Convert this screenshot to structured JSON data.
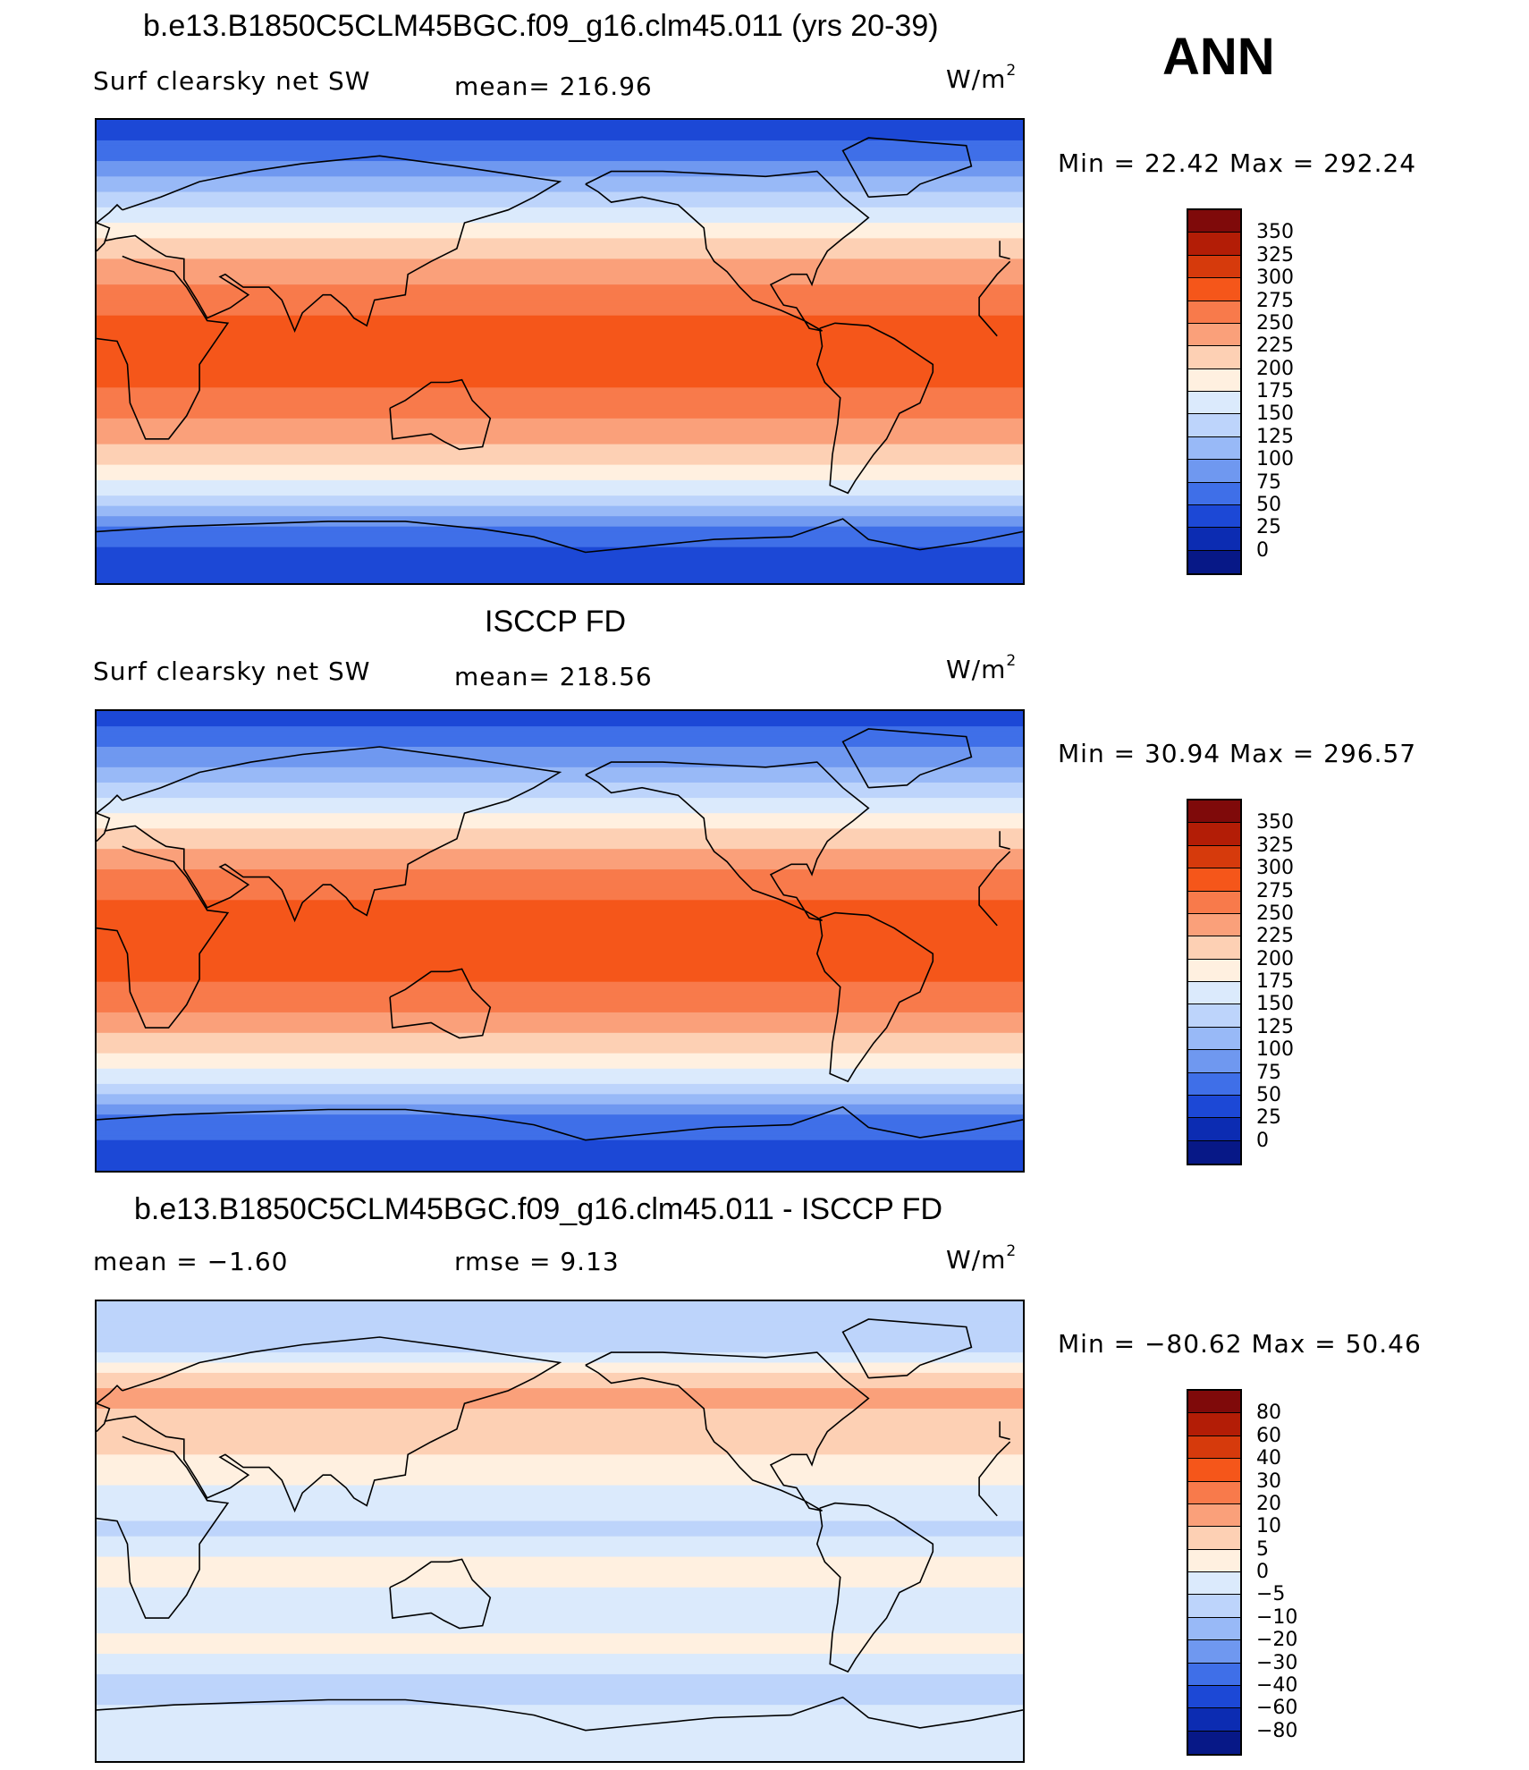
{
  "ann_label": "ANN",
  "panels": [
    {
      "title": "b.e13.B1850C5CLM45BGC.f09_g16.clm45.011 (yrs 20-39)",
      "left_label": "Surf clearsky net SW",
      "center_label": "mean= 216.96",
      "units": "W/m",
      "units_sup": "2",
      "minmax": "Min =   22.42 Max = 292.24"
    },
    {
      "title": "ISCCP FD",
      "left_label": "Surf clearsky net SW",
      "center_label": "mean= 218.56",
      "units": "W/m",
      "units_sup": "2",
      "minmax": "Min =   30.94 Max = 296.57"
    },
    {
      "title": "b.e13.B1850C5CLM45BGC.f09_g16.clm45.011 - ISCCP FD",
      "left_label": "mean =   −1.60",
      "center_label": "rmse =    9.13",
      "units": "W/m",
      "units_sup": "2",
      "minmax": "Min = −80.62 Max =   50.46"
    }
  ],
  "chart_data": [
    {
      "type": "heatmap",
      "title": "b.e13.B1850C5CLM45BGC.f09_g16.clm45.011 (yrs 20-39)",
      "variable": "Surf clearsky net SW",
      "units": "W/m2",
      "mean": 216.96,
      "min": 22.42,
      "max": 292.24,
      "colorbar_levels": [
        350,
        325,
        300,
        275,
        250,
        225,
        200,
        175,
        150,
        125,
        100,
        75,
        50,
        25,
        0
      ],
      "colors": [
        "#7f0a0a",
        "#b31d06",
        "#d63a0c",
        "#f5561a",
        "#f87a4b",
        "#faa07a",
        "#fdd0b4",
        "#fff0e0",
        "#dbeafc",
        "#bdd4fb",
        "#98b9f7",
        "#6f98f0",
        "#3f6fe8",
        "#1c48d6",
        "#0c2cb2",
        "#071887"
      ],
      "zonal_profile": [
        {
          "lat": 85,
          "value": 40
        },
        {
          "lat": 70,
          "value": 90
        },
        {
          "lat": 55,
          "value": 150
        },
        {
          "lat": 40,
          "value": 215
        },
        {
          "lat": 25,
          "value": 255
        },
        {
          "lat": 10,
          "value": 280
        },
        {
          "lat": -10,
          "value": 280
        },
        {
          "lat": -25,
          "value": 255
        },
        {
          "lat": -40,
          "value": 215
        },
        {
          "lat": -55,
          "value": 150
        },
        {
          "lat": -70,
          "value": 60
        },
        {
          "lat": -85,
          "value": 30
        }
      ]
    },
    {
      "type": "heatmap",
      "title": "ISCCP FD",
      "variable": "Surf clearsky net SW",
      "units": "W/m2",
      "mean": 218.56,
      "min": 30.94,
      "max": 296.57,
      "colorbar_levels": [
        350,
        325,
        300,
        275,
        250,
        225,
        200,
        175,
        150,
        125,
        100,
        75,
        50,
        25,
        0
      ],
      "colors": [
        "#7f0a0a",
        "#b31d06",
        "#d63a0c",
        "#f5561a",
        "#f87a4b",
        "#faa07a",
        "#fdd0b4",
        "#fff0e0",
        "#dbeafc",
        "#bdd4fb",
        "#98b9f7",
        "#6f98f0",
        "#3f6fe8",
        "#1c48d6",
        "#0c2cb2",
        "#071887"
      ],
      "zonal_profile": [
        {
          "lat": 85,
          "value": 45
        },
        {
          "lat": 70,
          "value": 95
        },
        {
          "lat": 55,
          "value": 155
        },
        {
          "lat": 40,
          "value": 215
        },
        {
          "lat": 25,
          "value": 258
        },
        {
          "lat": 10,
          "value": 285
        },
        {
          "lat": -10,
          "value": 285
        },
        {
          "lat": -25,
          "value": 258
        },
        {
          "lat": -40,
          "value": 215
        },
        {
          "lat": -55,
          "value": 155
        },
        {
          "lat": -70,
          "value": 65
        },
        {
          "lat": -85,
          "value": 35
        }
      ]
    },
    {
      "type": "heatmap",
      "title": "b.e13.B1850C5CLM45BGC.f09_g16.clm45.011 - ISCCP FD",
      "units": "W/m2",
      "mean": -1.6,
      "rmse": 9.13,
      "min": -80.62,
      "max": 50.46,
      "colorbar_levels": [
        "80",
        "60",
        "40",
        "30",
        "20",
        "10",
        "5",
        "0",
        "−5",
        "−10",
        "−20",
        "−30",
        "−40",
        "−60",
        "−80"
      ],
      "colors": [
        "#7f0a0a",
        "#b31d06",
        "#d63a0c",
        "#f5561a",
        "#f87a4b",
        "#faa07a",
        "#fdd0b4",
        "#fff0e0",
        "#dbeafc",
        "#bdd4fb",
        "#98b9f7",
        "#6f98f0",
        "#3f6fe8",
        "#1c48d6",
        "#0c2cb2",
        "#071887"
      ],
      "zonal_profile": [
        {
          "lat": 75,
          "value": -10
        },
        {
          "lat": 55,
          "value": 12
        },
        {
          "lat": 40,
          "value": 8
        },
        {
          "lat": 25,
          "value": 3
        },
        {
          "lat": 10,
          "value": -3
        },
        {
          "lat": 0,
          "value": -6
        },
        {
          "lat": -15,
          "value": 3
        },
        {
          "lat": -30,
          "value": -4
        },
        {
          "lat": -45,
          "value": 2
        },
        {
          "lat": -60,
          "value": -8
        },
        {
          "lat": -75,
          "value": -3
        }
      ]
    }
  ]
}
